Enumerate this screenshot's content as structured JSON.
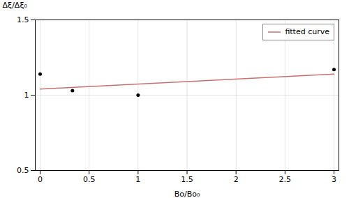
{
  "chart_data": {
    "type": "scatter",
    "xlabel": "Bo/Bo₀",
    "ylabel": "Δξ/Δξ₀",
    "xlim": [
      -0.05,
      3.05
    ],
    "ylim": [
      0.5,
      1.5
    ],
    "xticks": [
      0,
      0.5,
      1,
      1.5,
      2,
      2.5,
      3
    ],
    "yticks": [
      0.5,
      1,
      1.5
    ],
    "grid": true,
    "legend": "upper right",
    "series": [
      {
        "name": "fitted curve",
        "type": "line",
        "color": "#c87070",
        "x": [
          0.0,
          3.0
        ],
        "values": [
          1.04,
          1.14
        ]
      },
      {
        "type": "scatter",
        "color": "black",
        "x": [
          0.0,
          0.33,
          1.0,
          3.0
        ],
        "values": [
          1.14,
          1.03,
          1.0,
          1.17
        ]
      }
    ]
  }
}
